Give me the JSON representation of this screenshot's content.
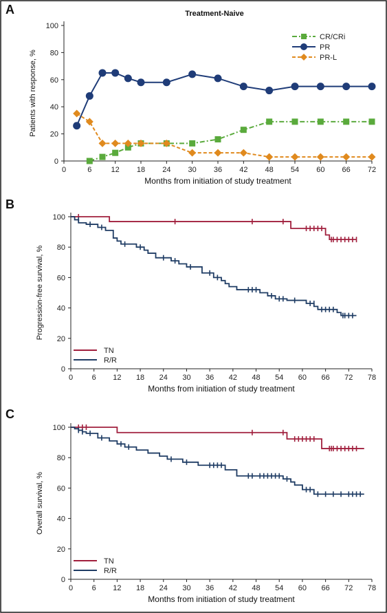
{
  "colors": {
    "cr": "#5aaa3c",
    "pr": "#1f3c78",
    "prl": "#e08a1e",
    "tn": "#a01e3c",
    "rr": "#1f3c64"
  },
  "chart_data": [
    {
      "panel": "A",
      "type": "line",
      "title": "Treatment-Naive",
      "xlabel": "Months from initiation of study treatment",
      "ylabel": "Patients with response, %",
      "xlim": [
        0,
        72
      ],
      "ylim": [
        0,
        100
      ],
      "xticks": [
        "0",
        "6",
        "12",
        "18",
        "24",
        "30",
        "36",
        "42",
        "48",
        "54",
        "60",
        "66",
        "72"
      ],
      "yticks": [
        "0",
        "20",
        "40",
        "60",
        "80",
        "100"
      ],
      "legend_position": "top-right",
      "series": [
        {
          "name": "CR/CRi",
          "marker": "square",
          "dash": "dash-dot",
          "x": [
            6,
            9,
            12,
            15,
            18,
            24,
            30,
            36,
            42,
            48,
            54,
            60,
            66,
            72
          ],
          "y": [
            0,
            3,
            6,
            10,
            13,
            13,
            13,
            16,
            23,
            29,
            29,
            29,
            29,
            29
          ]
        },
        {
          "name": "PR",
          "marker": "circle",
          "dash": "solid",
          "x": [
            3,
            6,
            9,
            12,
            15,
            18,
            24,
            30,
            36,
            42,
            48,
            54,
            60,
            66,
            72
          ],
          "y": [
            26,
            48,
            65,
            65,
            61,
            58,
            58,
            64,
            61,
            55,
            52,
            55,
            55,
            55,
            55
          ]
        },
        {
          "name": "PR-L",
          "marker": "diamond",
          "dash": "dashed",
          "x": [
            3,
            6,
            9,
            12,
            15,
            18,
            24,
            30,
            36,
            42,
            48,
            54,
            60,
            66,
            72
          ],
          "y": [
            35,
            29,
            13,
            13,
            13,
            13,
            13,
            6,
            6,
            6,
            3,
            3,
            3,
            3,
            3
          ]
        }
      ]
    },
    {
      "panel": "B",
      "type": "line",
      "xlabel": "Months from initiation of study treatment",
      "ylabel": "Progression-free survival, %",
      "xlim": [
        0,
        78
      ],
      "ylim": [
        0,
        100
      ],
      "xticks": [
        "0",
        "6",
        "12",
        "18",
        "24",
        "30",
        "36",
        "42",
        "48",
        "54",
        "60",
        "66",
        "72",
        "78"
      ],
      "yticks": [
        "0",
        "20",
        "40",
        "60",
        "80",
        "100"
      ],
      "legend_position": "bottom-left",
      "series": [
        {
          "name": "TN",
          "steps": [
            [
              0,
              100
            ],
            [
              10,
              100
            ],
            [
              10,
              96.8
            ],
            [
              57,
              96.8
            ],
            [
              57,
              92.3
            ],
            [
              66,
              92.3
            ],
            [
              66,
              88
            ],
            [
              67,
              88
            ],
            [
              67,
              85
            ],
            [
              74,
              85
            ]
          ],
          "censors": [
            [
              2,
              100
            ],
            [
              27,
              96.8
            ],
            [
              47,
              96.8
            ],
            [
              55,
              96.8
            ],
            [
              61,
              92.3
            ],
            [
              62,
              92.3
            ],
            [
              63,
              92.3
            ],
            [
              64,
              92.3
            ],
            [
              65,
              92.3
            ],
            [
              67.5,
              85
            ],
            [
              68,
              85
            ],
            [
              69,
              85
            ],
            [
              70,
              85
            ],
            [
              71,
              85
            ],
            [
              72,
              85
            ],
            [
              73,
              85
            ],
            [
              74,
              85
            ]
          ]
        },
        {
          "name": "R/R",
          "steps": [
            [
              0,
              100
            ],
            [
              1,
              98
            ],
            [
              2,
              96
            ],
            [
              4,
              95
            ],
            [
              7,
              93
            ],
            [
              9,
              91
            ],
            [
              11,
              86
            ],
            [
              12,
              84
            ],
            [
              13,
              82
            ],
            [
              17,
              80
            ],
            [
              19,
              78
            ],
            [
              20,
              76
            ],
            [
              22,
              73
            ],
            [
              26,
              71
            ],
            [
              28,
              69
            ],
            [
              30,
              67
            ],
            [
              34,
              63
            ],
            [
              37,
              60
            ],
            [
              39,
              58
            ],
            [
              40,
              56
            ],
            [
              41,
              54
            ],
            [
              43,
              52
            ],
            [
              49,
              50
            ],
            [
              51,
              48
            ],
            [
              53,
              46
            ],
            [
              56,
              45
            ],
            [
              61,
              43
            ],
            [
              63,
              41
            ],
            [
              64,
              39
            ],
            [
              69,
              37
            ],
            [
              70,
              35
            ],
            [
              74,
              35
            ]
          ],
          "censors": [
            [
              2,
              98
            ],
            [
              5,
              95
            ],
            [
              8,
              93
            ],
            [
              14,
              82
            ],
            [
              18,
              80
            ],
            [
              24,
              73
            ],
            [
              27,
              71
            ],
            [
              31,
              67
            ],
            [
              36,
              63
            ],
            [
              38,
              60
            ],
            [
              46,
              52
            ],
            [
              47,
              52
            ],
            [
              48,
              52
            ],
            [
              52,
              48
            ],
            [
              54,
              46
            ],
            [
              55,
              46
            ],
            [
              58,
              45
            ],
            [
              62,
              43
            ],
            [
              63,
              43
            ],
            [
              65,
              39
            ],
            [
              66,
              39
            ],
            [
              67,
              39
            ],
            [
              68,
              39
            ],
            [
              70.5,
              35
            ],
            [
              71,
              35
            ],
            [
              72,
              35
            ],
            [
              73,
              35
            ]
          ]
        }
      ]
    },
    {
      "panel": "C",
      "type": "line",
      "xlabel": "Months from initiation of study treatment",
      "ylabel": "Overall survival, %",
      "xlim": [
        0,
        78
      ],
      "ylim": [
        0,
        100
      ],
      "xticks": [
        "0",
        "6",
        "12",
        "18",
        "24",
        "30",
        "36",
        "42",
        "48",
        "54",
        "60",
        "66",
        "72",
        "78"
      ],
      "yticks": [
        "0",
        "20",
        "40",
        "60",
        "80",
        "100"
      ],
      "legend_position": "bottom-left",
      "series": [
        {
          "name": "TN",
          "steps": [
            [
              0,
              100
            ],
            [
              12,
              100
            ],
            [
              12,
              96.5
            ],
            [
              56,
              96.5
            ],
            [
              56,
              92.3
            ],
            [
              65,
              92.3
            ],
            [
              65,
              86
            ],
            [
              76,
              86
            ]
          ],
          "censors": [
            [
              2,
              100
            ],
            [
              3,
              100
            ],
            [
              4,
              100
            ],
            [
              47,
              96.5
            ],
            [
              55,
              96.5
            ],
            [
              58,
              92.3
            ],
            [
              59,
              92.3
            ],
            [
              60,
              92.3
            ],
            [
              61,
              92.3
            ],
            [
              62,
              92.3
            ],
            [
              63,
              92.3
            ],
            [
              67,
              86
            ],
            [
              67.5,
              86
            ],
            [
              68,
              86
            ],
            [
              69,
              86
            ],
            [
              70,
              86
            ],
            [
              71,
              86
            ],
            [
              72,
              86
            ],
            [
              73,
              86
            ],
            [
              74,
              86
            ]
          ]
        },
        {
          "name": "R/R",
          "steps": [
            [
              0,
              100
            ],
            [
              1,
              99
            ],
            [
              2,
              98
            ],
            [
              3,
              97
            ],
            [
              4,
              96
            ],
            [
              7,
              93
            ],
            [
              10,
              91
            ],
            [
              12,
              89
            ],
            [
              14,
              87
            ],
            [
              17,
              85
            ],
            [
              20,
              83
            ],
            [
              23,
              81
            ],
            [
              25,
              79
            ],
            [
              29,
              77
            ],
            [
              33,
              75
            ],
            [
              40,
              72
            ],
            [
              43,
              68
            ],
            [
              55,
              66
            ],
            [
              57,
              64
            ],
            [
              58,
              62
            ],
            [
              60,
              59
            ],
            [
              63,
              56
            ],
            [
              76,
              56
            ]
          ],
          "censors": [
            [
              2,
              98
            ],
            [
              3,
              97
            ],
            [
              5,
              96
            ],
            [
              8,
              93
            ],
            [
              13,
              89
            ],
            [
              15,
              87
            ],
            [
              26,
              79
            ],
            [
              30,
              77
            ],
            [
              36,
              75
            ],
            [
              37,
              75
            ],
            [
              38,
              75
            ],
            [
              39,
              75
            ],
            [
              46,
              68
            ],
            [
              47,
              68
            ],
            [
              49,
              68
            ],
            [
              50,
              68
            ],
            [
              51,
              68
            ],
            [
              52,
              68
            ],
            [
              53,
              68
            ],
            [
              54,
              68
            ],
            [
              56,
              66
            ],
            [
              61,
              59
            ],
            [
              62,
              59
            ],
            [
              64,
              56
            ],
            [
              66,
              56
            ],
            [
              68,
              56
            ],
            [
              70,
              56
            ],
            [
              72,
              56
            ],
            [
              73,
              56
            ],
            [
              74,
              56
            ],
            [
              75,
              56
            ]
          ]
        }
      ]
    }
  ]
}
